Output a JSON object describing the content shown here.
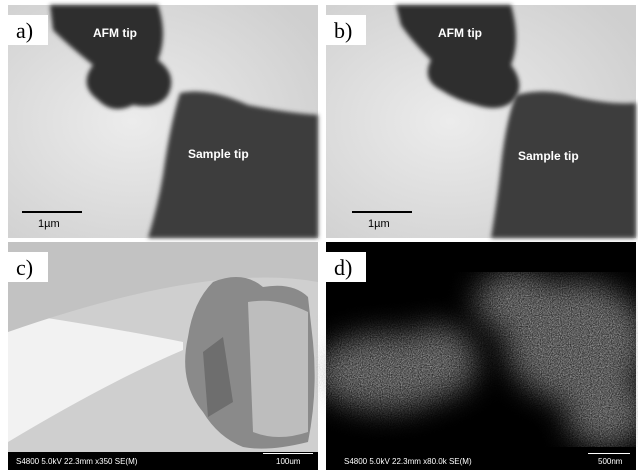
{
  "panels": [
    {
      "label": "a)",
      "annotations": [
        "AFM tip",
        "Sample tip"
      ],
      "scale_bar": "1µm"
    },
    {
      "label": "b)",
      "annotations": [
        "AFM tip",
        "Sample tip"
      ],
      "scale_bar": "1µm"
    },
    {
      "label": "c)",
      "info_bar": "S4800 5.0kV 22.3mm x350 SE(M)",
      "scale_bar": "100um"
    },
    {
      "label": "d)",
      "info_bar": "S4800 5.0kV 22.3mm x80.0k SE(M)",
      "scale_bar": "500nm"
    }
  ]
}
